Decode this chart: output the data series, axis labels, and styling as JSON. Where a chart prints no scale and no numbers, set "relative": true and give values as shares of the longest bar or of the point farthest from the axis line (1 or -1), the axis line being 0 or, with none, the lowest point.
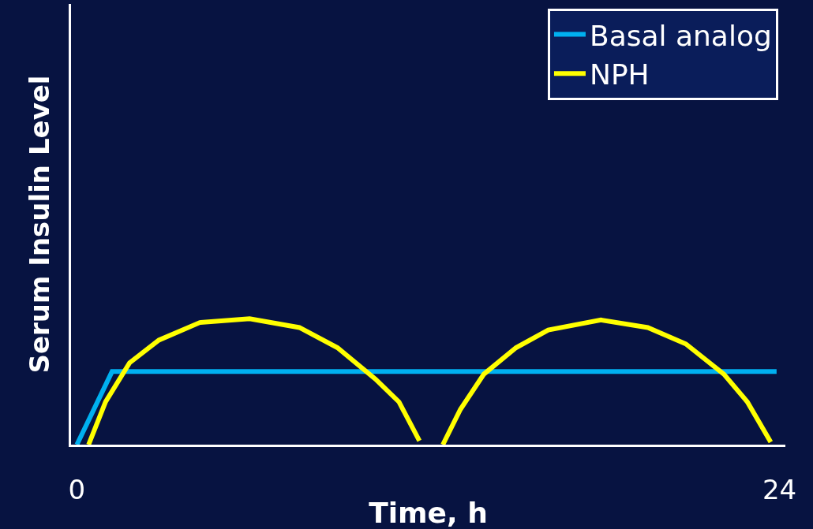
{
  "chart_data": {
    "type": "line",
    "relative": true,
    "xlabel": "Time, h",
    "ylabel": "Serum Insulin Level",
    "xlim": [
      -0.2,
      24.2
    ],
    "xticks": [
      0,
      24
    ],
    "grid": false,
    "legend": "top right",
    "marker": "none",
    "line_style": "solid",
    "series": [
      {
        "name": "Basal analog",
        "color": "#00b0f0",
        "x": [
          0,
          1.2,
          23.9
        ],
        "values": [
          0,
          0.58,
          0.58
        ]
      },
      {
        "name": "NPH",
        "color": "#ffff00",
        "x": [
          0.4,
          0.98,
          1.8,
          2.8,
          4.2,
          5.9,
          7.6,
          8.9,
          10.2,
          11.0,
          11.7,
          12.1,
          12.5,
          13.1,
          13.9,
          15.0,
          16.1,
          17.9,
          19.5,
          20.8,
          22.1,
          22.9,
          23.7
        ],
        "values": [
          0,
          0.34,
          0.65,
          0.83,
          0.97,
          1.0,
          0.93,
          0.77,
          0.52,
          0.34,
          0.03,
          null,
          0,
          0.28,
          0.56,
          0.77,
          0.91,
          0.99,
          0.93,
          0.8,
          0.56,
          0.34,
          0.02
        ]
      }
    ]
  }
}
